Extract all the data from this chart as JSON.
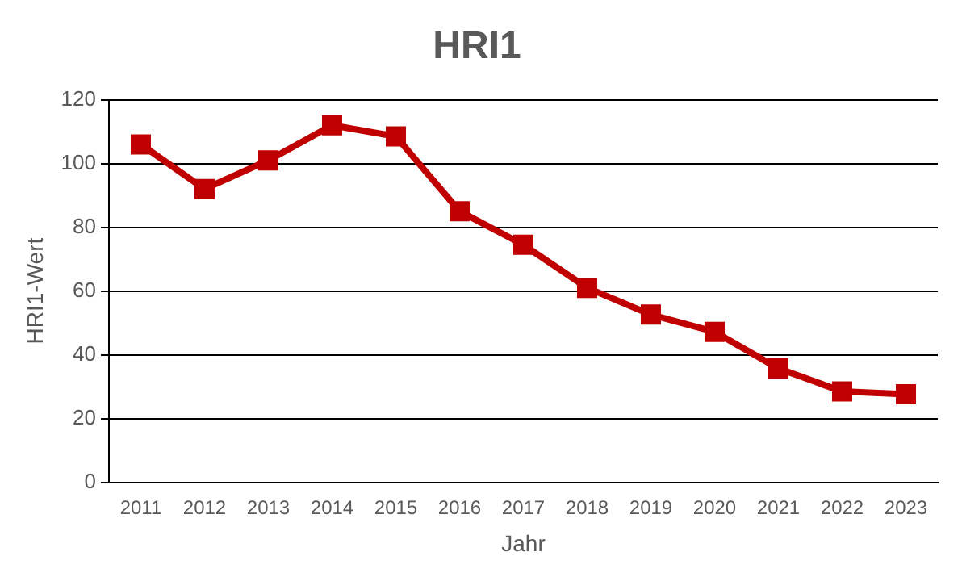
{
  "chart_data": {
    "type": "line",
    "title": "HRI1",
    "xlabel": "Jahr",
    "ylabel": "HRI1-Wert",
    "categories": [
      "2011",
      "2012",
      "2013",
      "2014",
      "2015",
      "2016",
      "2017",
      "2018",
      "2019",
      "2020",
      "2021",
      "2022",
      "2023"
    ],
    "series": [
      {
        "color": "#c00000",
        "values": [
          106,
          92,
          101,
          112,
          108.5,
          85,
          74.5,
          61,
          52.6,
          47.2,
          35.7,
          28.5,
          27.6
        ]
      }
    ],
    "ylim": [
      0,
      120
    ],
    "yticks": [
      0,
      20,
      40,
      60,
      80,
      100,
      120
    ],
    "grid": "y",
    "legend": false,
    "marker": "square",
    "line_style": "solid"
  }
}
